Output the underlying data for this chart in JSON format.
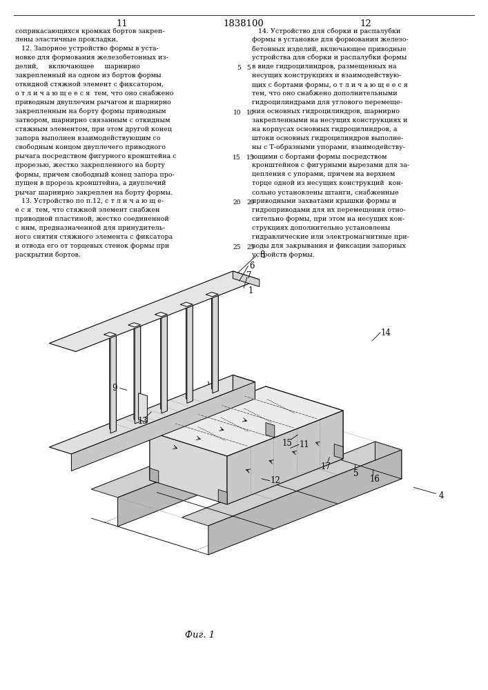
{
  "page_numbers_left": "11",
  "page_numbers_center": "1838100",
  "page_numbers_right": "12",
  "left_col_lines": [
    "соприкасающихся кромках бортов закреп-",
    "лены эластичные прокладки.",
    "   12. Запорное устройство формы в уста-",
    "новке для формования железобетонных из-",
    "делий,     включающее     шарнирно",
    "закрепленный на одном из бортов формы",
    "откидной стяжной элемент с фиксатором,",
    "о т л и ч а ю щ е е с я  тем, что оно снабжено",
    "приводным двуплечим рычагом и шарнирно",
    "закрепленным на борту формы приводным",
    "затвором, шарнирно связанным с откидным",
    "стяжным элементом, при этом другой конец",
    "запора выполнен взаимодействующим со",
    "свободным концом двуплечего приводного",
    "рычага посредством фигурного кронштейна с",
    "прорезью, жестко закрепленного на борту",
    "формы, причем свободный конец запора про-",
    "пущен в прорезь кронштейна, а двуплечий",
    "рычаг шарнирно закреплен на борту формы.",
    "   13. Устройство по п.12, с т л и ч а ю щ е-",
    "е с я  тем, что стяжной элемент снабжен",
    "приводной пластиной, жестко соединенной",
    "с ним, предназначенной для принудитель-",
    "ного снятия стяжного элемента с фиксатора",
    "и отвода его от торцевых стенок формы при",
    "раскрытии бортов."
  ],
  "right_col_lines": [
    "   14. Устройство для сборки и распалубки",
    "формы в установке для формования железо-",
    "бетонных изделий, включающее приводные",
    "устройства для сборки и распалубки формы",
    "в виде гидроцилиндров, размещенных на",
    "несущих конструкциях и взаимодействую-",
    "щих с бортами формы, о т л и ч а ю щ е е с я",
    "тем, что оно снабжено дополнительными",
    "гидроцилиндрами для углового перемеще-",
    "ния основных гидроцилиндров, шарнирно",
    "закрепленными на несущих конструкциях и",
    "на корпусах основных гидроцилиндров, а",
    "штоки основных гидроцилиндров выполне-",
    "ны с Т-образными упорами, взаимодейству-",
    "ющими с бортами формы посредством",
    "кронштейнов с фигурными вырезами для за-",
    "цепления с упорами, причем на верхнем",
    "торце одной из несущих конструкций  кон-",
    "сольно установлены штанги, снабженные",
    "приводными захватами крышки формы и",
    "гидроприводами для их перемещения отно-",
    "сительно формы, при этом на несущих кон-",
    "струкциях дополнительно установлены",
    "гидравлические или электромагнитные при-",
    "воды для закрывания и фиксации запорных",
    "устройств формы."
  ],
  "line_numbers": [
    5,
    10,
    15,
    20,
    25
  ],
  "figure_caption": "Фиг. 1",
  "bg_color": "#ffffff",
  "text_color": "#000000"
}
